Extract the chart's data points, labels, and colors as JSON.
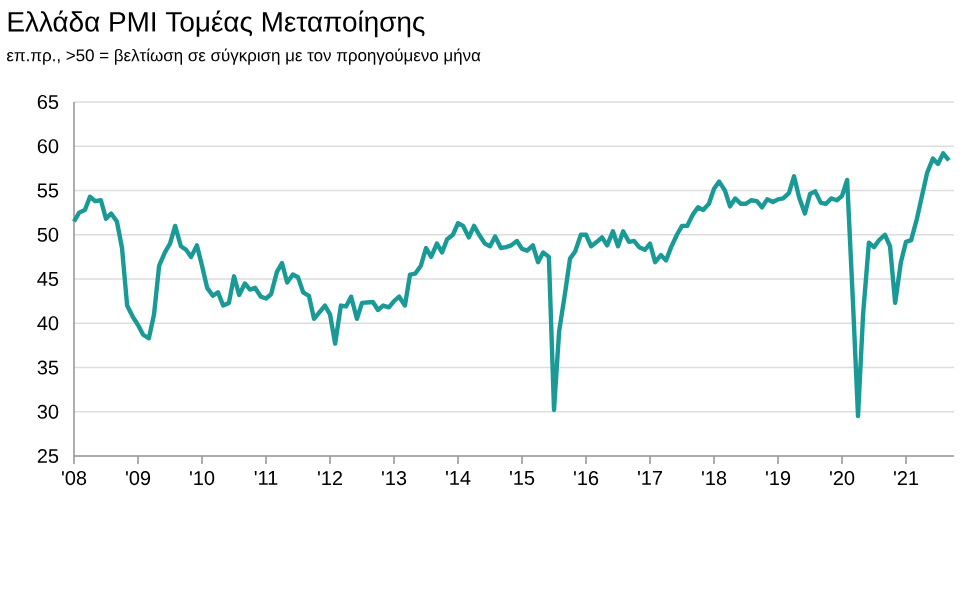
{
  "chart_data": {
    "type": "line",
    "title": "Ελλάδα PMI Τομέας Μεταποίησης",
    "subtitle": "επ.πρ., >50 = βελτίωση σε σύγκριση με τον προηγούμενο μήνα",
    "x": [
      2008.0,
      2008.08,
      2008.17,
      2008.25,
      2008.33,
      2008.42,
      2008.5,
      2008.58,
      2008.67,
      2008.75,
      2008.83,
      2008.92,
      2009.0,
      2009.08,
      2009.17,
      2009.25,
      2009.33,
      2009.42,
      2009.5,
      2009.58,
      2009.67,
      2009.75,
      2009.83,
      2009.92,
      2010.0,
      2010.08,
      2010.17,
      2010.25,
      2010.33,
      2010.42,
      2010.5,
      2010.58,
      2010.67,
      2010.75,
      2010.83,
      2010.92,
      2011.0,
      2011.08,
      2011.17,
      2011.25,
      2011.33,
      2011.42,
      2011.5,
      2011.58,
      2011.67,
      2011.75,
      2011.83,
      2011.92,
      2012.0,
      2012.08,
      2012.17,
      2012.25,
      2012.33,
      2012.42,
      2012.5,
      2012.67,
      2012.75,
      2012.83,
      2012.92,
      2013.0,
      2013.08,
      2013.17,
      2013.25,
      2013.33,
      2013.42,
      2013.5,
      2013.58,
      2013.67,
      2013.75,
      2013.83,
      2013.92,
      2014.0,
      2014.08,
      2014.17,
      2014.25,
      2014.33,
      2014.42,
      2014.5,
      2014.58,
      2014.67,
      2014.75,
      2014.83,
      2014.92,
      2015.0,
      2015.08,
      2015.17,
      2015.25,
      2015.33,
      2015.42,
      2015.5,
      2015.58,
      2015.67,
      2015.75,
      2015.83,
      2015.92,
      2016.0,
      2016.08,
      2016.17,
      2016.25,
      2016.33,
      2016.42,
      2016.5,
      2016.58,
      2016.67,
      2016.75,
      2016.83,
      2016.92,
      2017.0,
      2017.08,
      2017.17,
      2017.25,
      2017.33,
      2017.42,
      2017.5,
      2017.58,
      2017.67,
      2017.75,
      2017.83,
      2017.92,
      2018.0,
      2018.08,
      2018.17,
      2018.25,
      2018.33,
      2018.42,
      2018.5,
      2018.58,
      2018.67,
      2018.75,
      2018.83,
      2018.92,
      2019.0,
      2019.08,
      2019.17,
      2019.25,
      2019.33,
      2019.42,
      2019.5,
      2019.58,
      2019.67,
      2019.75,
      2019.83,
      2019.92,
      2020.0,
      2020.08,
      2020.17,
      2020.25,
      2020.33,
      2020.42,
      2020.5,
      2020.58,
      2020.67,
      2020.75,
      2020.83,
      2020.92,
      2021.0,
      2021.08,
      2021.17,
      2021.25,
      2021.33,
      2021.42,
      2021.5,
      2021.58,
      2021.67
    ],
    "series": [
      {
        "color": "#1a9a96",
        "values": [
          51.5,
          52.5,
          52.8,
          54.3,
          53.8,
          53.9,
          51.8,
          52.4,
          51.5,
          48.5,
          42,
          40.7,
          39.8,
          38.7,
          38.3,
          41,
          46.5,
          48,
          49,
          51,
          48.7,
          48.3,
          47.5,
          48.8,
          46.5,
          44,
          43.1,
          43.5,
          42,
          42.3,
          45.3,
          43.2,
          44.5,
          43.8,
          44,
          43,
          42.8,
          43.3,
          45.8,
          46.8,
          44.6,
          45.5,
          45.2,
          43.5,
          43.1,
          40.5,
          41.2,
          42,
          41,
          37.7,
          42,
          41.9,
          43,
          40.5,
          42.3,
          42.4,
          41.5,
          42,
          41.8,
          42.5,
          43,
          42,
          45.5,
          45.6,
          46.5,
          48.5,
          47.5,
          49,
          48,
          49.5,
          50,
          51.3,
          51,
          49.7,
          51,
          50,
          49,
          48.7,
          49.8,
          48.5,
          48.6,
          48.8,
          49.3,
          48.4,
          48.2,
          48.8,
          46.9,
          48,
          47.5,
          30.2,
          39.1,
          43.3,
          47.3,
          48.1,
          50,
          50,
          48.7,
          49.2,
          49.7,
          48.8,
          50.4,
          48.7,
          50.4,
          49.2,
          49.3,
          48.6,
          48.3,
          49,
          46.9,
          47.7,
          47.1,
          48.6,
          50,
          51,
          51,
          52.3,
          53.1,
          52.8,
          53.5,
          55.2,
          56,
          55,
          53.2,
          54.1,
          53.5,
          53.5,
          53.9,
          53.8,
          53.1,
          54,
          53.7,
          54,
          54.1,
          54.7,
          56.6,
          54.2,
          52.4,
          54.6,
          54.9,
          53.6,
          53.5,
          54.1,
          53.9,
          54.4,
          56.2,
          42.5,
          29.5,
          41.1,
          49.1,
          48.6,
          49.4,
          50,
          48.7,
          42.3,
          46.9,
          49.2,
          49.4,
          51.8,
          54.4,
          57,
          58.6,
          58,
          59.2,
          58.4
        ]
      }
    ],
    "xlim": [
      2008,
      2021.75
    ],
    "ylim": [
      25,
      65
    ],
    "xticks": [
      {
        "value": 2008,
        "label": "'08"
      },
      {
        "value": 2009,
        "label": "'09"
      },
      {
        "value": 2010,
        "label": "'10"
      },
      {
        "value": 2011,
        "label": "'11"
      },
      {
        "value": 2012,
        "label": "'12"
      },
      {
        "value": 2013,
        "label": "'13"
      },
      {
        "value": 2014,
        "label": "'14"
      },
      {
        "value": 2015,
        "label": "'15"
      },
      {
        "value": 2016,
        "label": "'16"
      },
      {
        "value": 2017,
        "label": "'17"
      },
      {
        "value": 2018,
        "label": "'18"
      },
      {
        "value": 2019,
        "label": "'19"
      },
      {
        "value": 2020,
        "label": "'20"
      },
      {
        "value": 2021,
        "label": "'21"
      }
    ],
    "yticks": [
      25,
      30,
      35,
      40,
      45,
      50,
      55,
      60,
      65
    ],
    "grid": "y",
    "marker": "none",
    "line_style": "solid"
  }
}
